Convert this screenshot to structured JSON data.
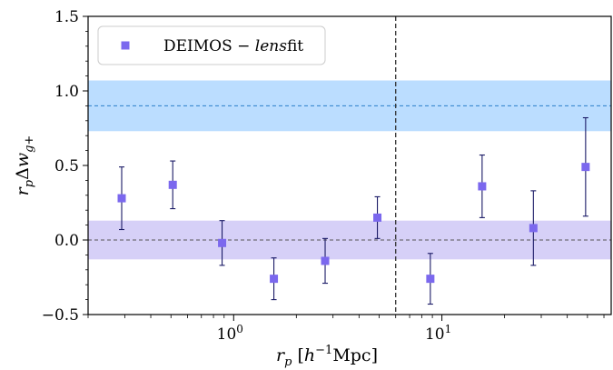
{
  "chart_data": {
    "type": "scatter",
    "xscale": "log",
    "xlim": [
      0.2,
      65
    ],
    "ylim": [
      -0.5,
      1.5
    ],
    "xlabel": "r_p [h⁻¹Mpc]",
    "ylabel": "r_pΔw_g+",
    "x_tick_labels": [
      {
        "value": 1,
        "base": "10",
        "exp": "0"
      },
      {
        "value": 10,
        "base": "10",
        "exp": "1"
      }
    ],
    "y_ticks": [
      -0.5,
      0.0,
      0.5,
      1.0,
      1.5
    ],
    "y_tick_labels": [
      "−0.5",
      "0.0",
      "0.5",
      "1.0",
      "1.5"
    ],
    "legend": {
      "location": "upper-left",
      "label_prefix": "DEIMOS − ",
      "label_italic": "lens",
      "label_suffix": "fit"
    },
    "series": [
      {
        "name": "DEIMOS − lensfit",
        "marker": "square",
        "color": "#7b68ee",
        "errorbar_color": "#1a1a66",
        "x": [
          0.29,
          0.51,
          0.88,
          1.56,
          2.75,
          4.9,
          8.8,
          15.6,
          27.5,
          49
        ],
        "y": [
          0.28,
          0.37,
          -0.02,
          -0.26,
          -0.14,
          0.15,
          -0.26,
          0.36,
          0.08,
          0.49
        ],
        "yerr_low": [
          0.21,
          0.16,
          0.15,
          0.14,
          0.15,
          0.14,
          0.17,
          0.21,
          0.25,
          0.33
        ],
        "yerr_high": [
          0.21,
          0.16,
          0.15,
          0.14,
          0.15,
          0.14,
          0.17,
          0.21,
          0.25,
          0.33
        ]
      }
    ],
    "bands": [
      {
        "y_low": 0.73,
        "y_high": 1.07,
        "center": 0.9,
        "fill": "#bbddff",
        "line_color": "#2a7fc9",
        "line_style": "dashed"
      },
      {
        "y_low": -0.13,
        "y_high": 0.13,
        "center": 0.0,
        "fill": "#d6d0f7",
        "line_color": "#555555",
        "line_style": "dashed"
      }
    ],
    "vline": {
      "x": 6.0,
      "color": "#333333",
      "line_style": "dashed"
    },
    "grid": false
  }
}
